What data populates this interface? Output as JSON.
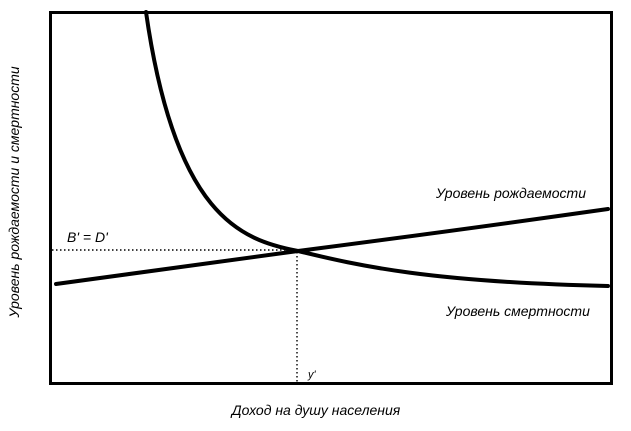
{
  "chart_data": {
    "type": "line",
    "xlabel": "Доход на душу населения",
    "ylabel": "Уровень рождаемости и смертности",
    "equilibrium_label": "B' = D'",
    "equilibrium_x_label": "y'",
    "series": [
      {
        "name": "Уровень рождаемости"
      },
      {
        "name": "Уровень смертности"
      }
    ],
    "grid": false
  },
  "colors": {
    "line": "#000000",
    "background": "#ffffff"
  }
}
